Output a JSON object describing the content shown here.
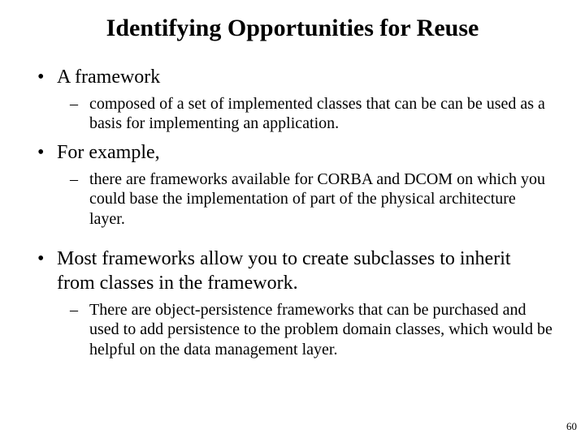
{
  "title": "Identifying Opportunities for Reuse",
  "items": [
    {
      "level": 1,
      "text": "A framework"
    },
    {
      "level": 2,
      "text": "composed of a set of implemented classes that can be can be used as a basis for implementing an application."
    },
    {
      "level": 1,
      "text": "For example,"
    },
    {
      "level": 2,
      "text": "there are frameworks available for CORBA and DCOM on which you could base the implementation of part of the physical architecture layer."
    },
    {
      "level": 1,
      "gapBefore": true,
      "text": "Most frameworks allow you to create subclasses to inherit from classes in the framework."
    },
    {
      "level": 2,
      "text": "There are object-persistence frameworks that can be purchased and used to add persistence to the problem domain classes, which would be helpful on the data management layer."
    }
  ],
  "pageNumber": "60",
  "bullets": {
    "level1": "•",
    "level2": "–"
  },
  "colors": {
    "text": "#000000",
    "background": "#ffffff"
  }
}
